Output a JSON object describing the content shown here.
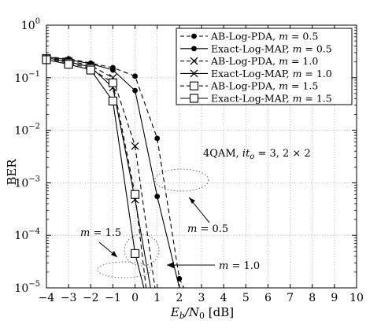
{
  "chart_data": {
    "type": "line",
    "xlabel": "E_b/N_0 [dB]",
    "xlabel_parts": {
      "main": "E",
      "sub1": "b",
      "slash": "/N",
      "sub2": "0",
      "unit": " [dB]"
    },
    "ylabel": "BER",
    "xlim": [
      -4,
      10
    ],
    "ylim": [
      1e-05,
      1
    ],
    "y_scale": "log",
    "x_ticks": [
      "−4",
      "−3",
      "−2",
      "−1",
      "0",
      "1",
      "2",
      "3",
      "4",
      "5",
      "6",
      "7",
      "8",
      "9",
      "10"
    ],
    "y_tick_bases": [
      "10",
      "10",
      "10",
      "10",
      "10",
      "10"
    ],
    "y_tick_exps": [
      "−5",
      "−4",
      "−3",
      "−2",
      "−1",
      "0"
    ],
    "legend_position": "top-right",
    "series": [
      {
        "name": "AB-Log-PDA, m = 0.5",
        "label_main": "AB-Log-PDA, ",
        "label_m": "m",
        "label_val": " = 0.5",
        "dashed": true,
        "marker": "dot",
        "x": [
          -4,
          -3,
          -2,
          -1,
          0,
          1,
          2,
          2.2
        ],
        "y": [
          0.25,
          0.23,
          0.19,
          0.155,
          0.107,
          0.007,
          1.5e-05,
          1e-05
        ]
      },
      {
        "name": "Exact-Log-MAP, m = 0.5",
        "label_main": "Exact-Log-MAP, ",
        "label_m": "m",
        "label_val": " = 0.5",
        "dashed": false,
        "marker": "dot",
        "x": [
          -4,
          -3,
          -2,
          -1,
          0,
          1,
          2
        ],
        "y": [
          0.25,
          0.22,
          0.185,
          0.14,
          0.057,
          0.00055,
          1e-05
        ]
      },
      {
        "name": "AB-Log-PDA, m = 1.0",
        "label_main": "AB-Log-PDA, ",
        "label_m": "m",
        "label_val": " = 1.0",
        "dashed": true,
        "marker": "x",
        "x": [
          -4,
          -3,
          -2,
          -1,
          0,
          0.9
        ],
        "y": [
          0.24,
          0.21,
          0.17,
          0.1,
          0.005,
          1e-05
        ]
      },
      {
        "name": "Exact-Log-MAP, m = 1.0",
        "label_main": "Exact-Log-MAP, ",
        "label_m": "m",
        "label_val": " = 1.0",
        "dashed": false,
        "marker": "x",
        "x": [
          -4,
          -3,
          -2,
          -1,
          0,
          0.7
        ],
        "y": [
          0.24,
          0.2,
          0.16,
          0.065,
          0.00048,
          1e-05
        ]
      },
      {
        "name": "AB-Log-PDA, m = 1.5",
        "label_main": "AB-Log-PDA, ",
        "label_m": "m",
        "label_val": " = 1.5",
        "dashed": true,
        "marker": "square",
        "x": [
          -4,
          -3,
          -2,
          -1,
          0,
          0.5
        ],
        "y": [
          0.23,
          0.19,
          0.15,
          0.08,
          0.0006,
          1e-05
        ]
      },
      {
        "name": "Exact-Log-MAP, m = 1.5",
        "label_main": "Exact-Log-MAP, ",
        "label_m": "m",
        "label_val": " = 1.5",
        "dashed": false,
        "marker": "square",
        "x": [
          -4,
          -3,
          -2,
          -1,
          0,
          0.4
        ],
        "y": [
          0.22,
          0.18,
          0.14,
          0.036,
          4.5e-05,
          1e-05
        ]
      }
    ],
    "annotations": {
      "config": {
        "prefix": "4QAM, ",
        "it": "it",
        "it_sub": "o",
        "rest": " = 3, 2 × 2"
      },
      "m05": {
        "m": "m",
        "val": " = 0.5"
      },
      "m10": {
        "m": "m",
        "val": " = 1.0"
      },
      "m15": {
        "m": "m",
        "val": " = 1.5"
      }
    }
  }
}
